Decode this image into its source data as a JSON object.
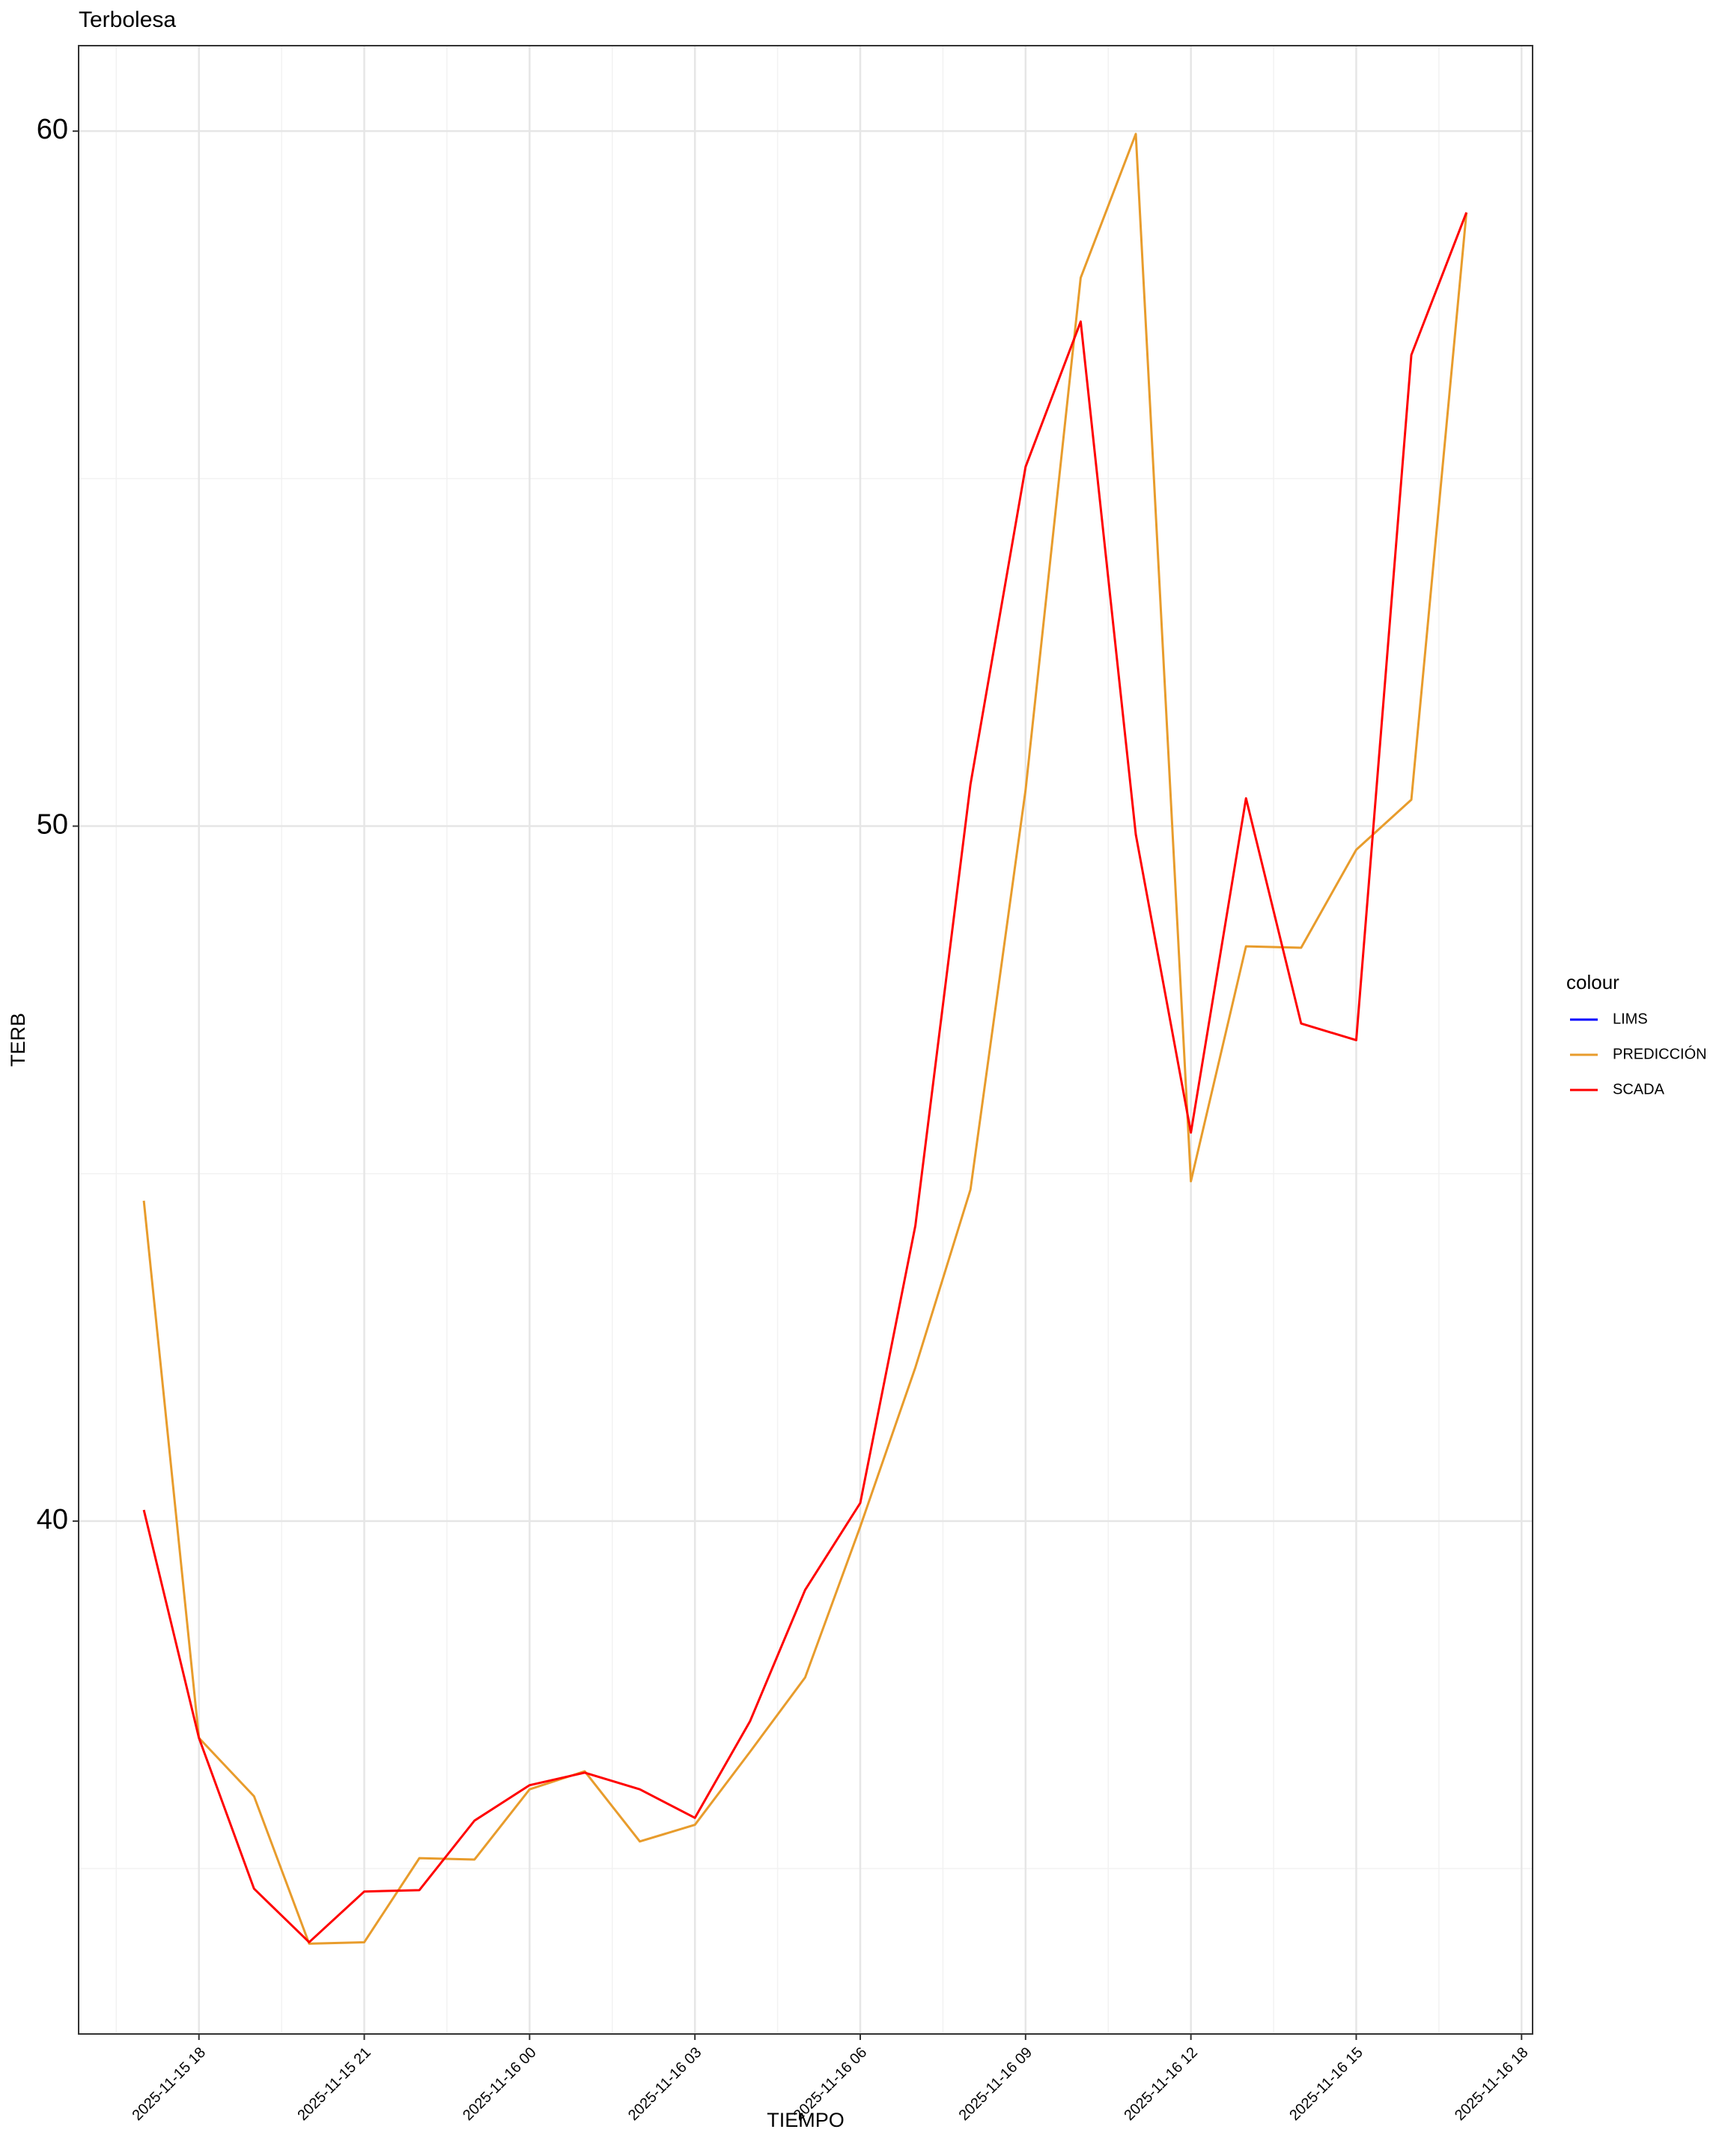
{
  "chart_data": {
    "type": "line",
    "title": "Terbolesa",
    "x_label": "TIEMPO",
    "y_label": "TERB",
    "legend_title": "colour",
    "legend_position": "right",
    "grid": true,
    "x": [
      "2025-11-15 17",
      "2025-11-15 18",
      "2025-11-15 19",
      "2025-11-15 20",
      "2025-11-15 21",
      "2025-11-15 22",
      "2025-11-15 23",
      "2025-11-16 00",
      "2025-11-16 01",
      "2025-11-16 02",
      "2025-11-16 03",
      "2025-11-16 04",
      "2025-11-16 05",
      "2025-11-16 06",
      "2025-11-16 07",
      "2025-11-16 08",
      "2025-11-16 09",
      "2025-11-16 10",
      "2025-11-16 11",
      "2025-11-16 12",
      "2025-11-16 13",
      "2025-11-16 14",
      "2025-11-16 15",
      "2025-11-16 16",
      "2025-11-16 17"
    ],
    "series": [
      {
        "name": "LIMS",
        "color": "#0000ff",
        "values": [
          null,
          null,
          null,
          null,
          null,
          null,
          null,
          null,
          null,
          null,
          null,
          null,
          null,
          null,
          null,
          null,
          null,
          null,
          null,
          null,
          null,
          null,
          null,
          null,
          null
        ]
      },
      {
        "name": "PREDICCIÓN",
        "color": "#e89c2c",
        "values": [
          44.61,
          36.88,
          36.04,
          33.92,
          33.94,
          35.15,
          35.13,
          36.14,
          36.4,
          35.39,
          35.63,
          36.68,
          37.75,
          39.92,
          42.21,
          44.77,
          50.52,
          57.89,
          59.96,
          44.89,
          48.27,
          48.25,
          49.66,
          50.38,
          58.83
        ]
      },
      {
        "name": "SCADA",
        "color": "#ff0000",
        "values": [
          40.16,
          36.88,
          34.71,
          33.94,
          34.67,
          34.69,
          35.69,
          36.2,
          36.38,
          36.14,
          35.73,
          37.12,
          39.01,
          40.26,
          44.25,
          50.6,
          55.17,
          57.26,
          49.88,
          45.59,
          50.4,
          47.16,
          46.92,
          56.78,
          58.83
        ]
      }
    ],
    "xlim": [
      "2025-11-15 15:49",
      "2025-11-16 18:12"
    ],
    "xticks": [
      "2025-11-15 18",
      "2025-11-15 21",
      "2025-11-16 00",
      "2025-11-16 03",
      "2025-11-16 06",
      "2025-11-16 09",
      "2025-11-16 12",
      "2025-11-16 15",
      "2025-11-16 18"
    ],
    "ylim": [
      32.62,
      61.23
    ],
    "yticks": [
      40,
      50,
      60
    ]
  }
}
